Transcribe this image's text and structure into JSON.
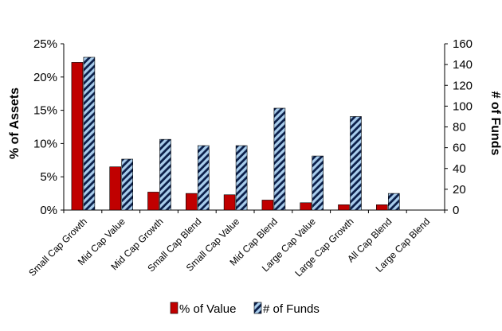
{
  "chart_data": {
    "type": "bar",
    "categories": [
      "Small Cap Growth",
      "Mid Cap Value",
      "Mid Cap Growth",
      "Small Cap Blend",
      "Small Cap Value",
      "Mid Cap Blend",
      "Large Cap Value",
      "Large Cap Growth",
      "All Cap Blend",
      "Large Cap Blend"
    ],
    "series": [
      {
        "name": "% of Value",
        "axis": "left",
        "color": "#c00000",
        "values": [
          22.2,
          6.5,
          2.7,
          2.5,
          2.3,
          1.5,
          1.1,
          0.8,
          0.8,
          0.0
        ]
      },
      {
        "name": "# of Funds",
        "axis": "right",
        "color": "#9dc3e6",
        "pattern": "diagonal-hatch",
        "values": [
          147,
          49,
          68,
          62,
          62,
          98,
          52,
          90,
          16,
          0
        ]
      }
    ],
    "ylabel": "% of Assets",
    "ylabel_right": "# of Funds",
    "ylim": [
      0,
      25
    ],
    "ylim_right": [
      0,
      160
    ],
    "yticks": [
      "0%",
      "5%",
      "10%",
      "15%",
      "20%",
      "25%"
    ],
    "yticks_right": [
      "0",
      "20",
      "40",
      "60",
      "80",
      "100",
      "120",
      "140",
      "160"
    ],
    "grid": false,
    "legend_position": "bottom"
  }
}
